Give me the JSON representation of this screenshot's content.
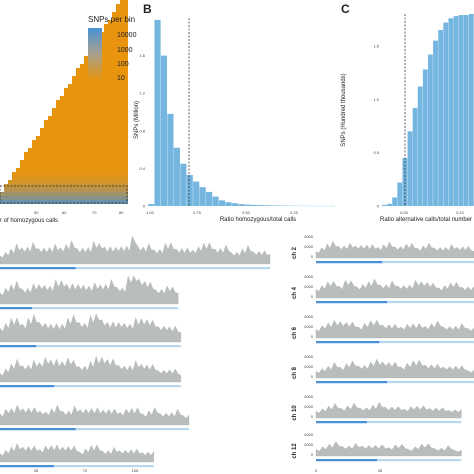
{
  "colors": {
    "hist_bar": "#74b6e0",
    "density_fill": "#b9bdbd",
    "track_line": "#4a90d6",
    "track_light": "#b8d8ef",
    "heat_low": "#e8940f",
    "heat_high": "#4a92d6",
    "dashed": "#222222"
  },
  "chart_data": [
    {
      "id": "A",
      "type": "heatmap",
      "legend": {
        "title": "SNPs per bin",
        "ticks": [
          "10000",
          "1000",
          "100",
          "10"
        ],
        "scale": "log",
        "placement": "top-right"
      },
      "xlabel": "Number of homozygous calls",
      "xtick_labels": [
        "50",
        "60",
        "70",
        "80"
      ],
      "x_visible_text": "r of homozygous calls",
      "highlight_box": true
    },
    {
      "id": "B",
      "type": "bar",
      "letter": "B",
      "xlabel": "Ratio homozygous/total calls",
      "ylabel": "SNPs (Million)",
      "xticks": [
        "1.00",
        "0.75",
        "0.50",
        "0.25"
      ],
      "yticks": [
        "1.6",
        "1.2",
        "0.8",
        "0.4",
        "0"
      ],
      "ylim": [
        0,
        2.0
      ],
      "threshold_line": 0.72,
      "bins_x": [
        1.0,
        0.98,
        0.96,
        0.94,
        0.92,
        0.9,
        0.88,
        0.86,
        0.84,
        0.82,
        0.8,
        0.78,
        0.76,
        0.74,
        0.72,
        0.7,
        0.68,
        0.66,
        0.64,
        0.62,
        0.6,
        0.55,
        0.5,
        0.45,
        0.4,
        0.35,
        0.3,
        0.25,
        0.2
      ],
      "values": [
        0.02,
        1.98,
        1.6,
        0.98,
        0.62,
        0.45,
        0.33,
        0.26,
        0.2,
        0.15,
        0.1,
        0.06,
        0.04,
        0.03,
        0.02,
        0.015,
        0.012,
        0.01,
        0.008,
        0.006,
        0.005,
        0.004,
        0.003,
        0.003,
        0.002,
        0.002,
        0.001,
        0.001,
        0.001
      ]
    },
    {
      "id": "C",
      "type": "bar",
      "letter": "C",
      "xlabel": "Ratio alternative calls/total number",
      "ylabel": "SNPs (Hundred thousands)",
      "xticks": [
        "0.05",
        "0.10"
      ],
      "yticks": [
        "1.5",
        "1.0",
        "0.5",
        "0"
      ],
      "ylim": [
        0,
        1.8
      ],
      "threshold_line": 0.05,
      "bins_x": [
        0.04,
        0.045,
        0.05,
        0.055,
        0.06,
        0.065,
        0.07,
        0.075,
        0.08,
        0.085,
        0.09,
        0.095,
        0.1,
        0.105,
        0.11,
        0.115,
        0.12,
        0.125
      ],
      "values": [
        0.01,
        0.02,
        0.08,
        0.22,
        0.45,
        0.7,
        0.92,
        1.12,
        1.28,
        1.42,
        1.55,
        1.65,
        1.72,
        1.76,
        1.78,
        1.79,
        1.79,
        1.8
      ]
    },
    {
      "id": "D",
      "type": "area",
      "ylabel_left": [],
      "xtick_bottom_left": [
        "36",
        "72",
        "108"
      ],
      "xtick_bottom_right": [
        "0",
        "36"
      ],
      "right_chromosomes": [
        "ch 2",
        "ch 4",
        "ch 6",
        "ch 8",
        "ch 10",
        "ch 12"
      ],
      "right_yticks": [
        "4000",
        "2000",
        "0"
      ],
      "left_tracks": [
        {
          "length": 1.0,
          "line_end": 0.28,
          "values": [
            0.3,
            0.35,
            0.4,
            0.5,
            0.55,
            0.5,
            0.6,
            0.55,
            0.5,
            0.45,
            0.5,
            0.55,
            0.6,
            0.65,
            0.55,
            0.5,
            0.45,
            0.6,
            0.7,
            0.5,
            0.45,
            0.6,
            0.55,
            0.5,
            0.9,
            0.6,
            0.5,
            0.55,
            0.5,
            0.45,
            0.6,
            0.55,
            0.5,
            0.45,
            0.4,
            0.5,
            0.55,
            0.6,
            0.55,
            0.5,
            0.45,
            0.5,
            0.4,
            0.35,
            0.4,
            0.45,
            0.4,
            0.35,
            0.3,
            0.35
          ]
        },
        {
          "length": 0.66,
          "line_end": 0.18,
          "values": [
            0.4,
            0.5,
            0.55,
            0.6,
            0.5,
            0.45,
            0.55,
            0.7,
            0.6,
            0.5,
            0.65,
            0.8,
            0.6,
            0.55,
            0.7,
            0.6,
            0.5,
            0.55,
            0.65,
            0.6,
            0.7,
            0.6,
            0.5,
            0.9,
            0.95,
            0.85,
            0.7,
            0.6,
            0.5,
            0.45,
            0.5,
            0.4,
            0.35
          ]
        },
        {
          "length": 0.67,
          "line_end": 0.2,
          "values": [
            0.5,
            0.6,
            0.7,
            0.65,
            0.6,
            0.75,
            0.8,
            0.7,
            0.6,
            0.5,
            0.45,
            0.6,
            0.75,
            0.8,
            0.7,
            0.6,
            0.8,
            0.9,
            0.75,
            0.6,
            0.55,
            0.7,
            0.6,
            0.5,
            0.65,
            0.8,
            0.7,
            0.6,
            0.55,
            0.5,
            0.4,
            0.35,
            0.3
          ]
        },
        {
          "length": 0.67,
          "line_end": 0.3,
          "values": [
            0.3,
            0.4,
            0.5,
            0.6,
            0.55,
            0.5,
            0.6,
            0.7,
            0.8,
            0.65,
            0.6,
            0.7,
            0.75,
            0.6,
            0.55,
            0.5,
            0.6,
            0.7,
            0.85,
            0.7,
            0.65,
            0.6,
            0.5,
            0.45,
            0.55,
            0.6,
            0.5,
            0.45,
            0.4,
            0.35,
            0.3,
            0.25,
            0.2
          ]
        },
        {
          "length": 0.7,
          "line_end": 0.4,
          "values": [
            0.4,
            0.5,
            0.45,
            0.5,
            0.55,
            0.5,
            0.45,
            0.5,
            0.4,
            0.45,
            0.5,
            0.45,
            0.4,
            0.5,
            0.55,
            0.5,
            0.45,
            0.4,
            0.5,
            0.45,
            0.4,
            0.45,
            0.5,
            0.45,
            0.4,
            0.35,
            0.4,
            0.45,
            0.4,
            0.35,
            0.3,
            0.35,
            0.3,
            0.25
          ]
        },
        {
          "length": 0.57,
          "line_end": 0.35,
          "values": [
            0.3,
            0.35,
            0.4,
            0.45,
            0.5,
            0.45,
            0.4,
            0.45,
            0.5,
            0.45,
            0.4,
            0.5,
            0.45,
            0.4,
            0.35,
            0.4,
            0.45,
            0.4,
            0.35,
            0.3,
            0.35,
            0.4,
            0.35,
            0.3,
            0.25,
            0.3,
            0.25,
            0.2
          ]
        }
      ],
      "right_tracks": [
        {
          "length": 1.0,
          "line_end": 0.42,
          "values": [
            0.3,
            0.4,
            0.5,
            0.55,
            0.5,
            0.45,
            0.5,
            0.55,
            0.5,
            0.45,
            0.4,
            0.45,
            0.5,
            0.55,
            0.5,
            0.45,
            0.5,
            0.45,
            0.4,
            0.45,
            0.5,
            0.45,
            0.4,
            0.35,
            0.4,
            0.45,
            0.4,
            0.35,
            0.3
          ]
        },
        {
          "length": 1.0,
          "line_end": 0.45,
          "values": [
            0.4,
            0.5,
            0.6,
            0.55,
            0.5,
            0.7,
            0.6,
            0.5,
            0.55,
            0.6,
            0.65,
            0.55,
            0.5,
            0.6,
            0.55,
            0.5,
            0.45,
            0.6,
            0.7,
            0.6,
            0.5,
            0.45,
            0.5,
            0.55,
            0.5,
            0.45,
            0.4,
            0.35
          ]
        },
        {
          "length": 1.0,
          "line_end": 0.4,
          "values": [
            0.4,
            0.5,
            0.55,
            0.6,
            0.7,
            0.6,
            0.55,
            0.5,
            0.6,
            0.65,
            0.6,
            0.55,
            0.5,
            0.45,
            0.5,
            0.55,
            0.5,
            0.45,
            0.5,
            0.55,
            0.6,
            0.5,
            0.45,
            0.4,
            0.45,
            0.4,
            0.35
          ]
        },
        {
          "length": 1.0,
          "line_end": 0.45,
          "values": [
            0.3,
            0.35,
            0.4,
            0.5,
            0.45,
            0.55,
            0.6,
            0.55,
            0.5,
            0.6,
            0.65,
            0.7,
            0.6,
            0.55,
            0.5,
            0.6,
            0.65,
            0.6,
            0.55,
            0.5,
            0.45,
            0.5,
            0.45,
            0.4,
            0.35,
            0.3,
            0.25
          ]
        },
        {
          "length": 0.92,
          "line_end": 0.35,
          "values": [
            0.3,
            0.35,
            0.4,
            0.45,
            0.4,
            0.45,
            0.5,
            0.45,
            0.4,
            0.45,
            0.5,
            0.45,
            0.4,
            0.35,
            0.4,
            0.45,
            0.4,
            0.35,
            0.4,
            0.35,
            0.3,
            0.35,
            0.3,
            0.25
          ]
        },
        {
          "length": 0.92,
          "line_end": 0.42,
          "values": [
            0.3,
            0.35,
            0.4,
            0.45,
            0.4,
            0.35,
            0.4,
            0.45,
            0.4,
            0.35,
            0.3,
            0.35,
            0.4,
            0.35,
            0.3,
            0.35,
            0.4,
            0.35,
            0.3,
            0.25,
            0.3,
            0.25,
            0.2
          ]
        }
      ]
    }
  ]
}
